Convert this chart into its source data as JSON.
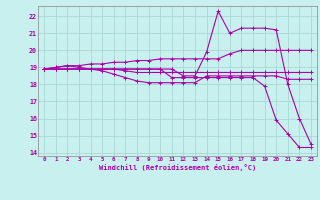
{
  "xlabel": "Windchill (Refroidissement éolien,°C)",
  "ylabel": "",
  "background_color": "#c8f0ee",
  "grid_color": "#a8d8d4",
  "line_color": "#aa00aa",
  "tick_color": "#aa00aa",
  "xlim": [
    -0.5,
    23.5
  ],
  "ylim": [
    13.8,
    22.6
  ],
  "yticks": [
    14,
    15,
    16,
    17,
    18,
    19,
    20,
    21,
    22
  ],
  "xticks": [
    0,
    1,
    2,
    3,
    4,
    5,
    6,
    7,
    8,
    9,
    10,
    11,
    12,
    13,
    14,
    15,
    16,
    17,
    18,
    19,
    20,
    21,
    22,
    23
  ],
  "series": [
    [
      18.9,
      18.9,
      18.9,
      18.9,
      18.9,
      18.9,
      18.9,
      18.9,
      18.9,
      18.9,
      18.9,
      18.4,
      18.4,
      18.4,
      18.4,
      18.4,
      18.4,
      18.4,
      18.4,
      17.9,
      15.9,
      15.1,
      14.3,
      14.3
    ],
    [
      18.9,
      19.0,
      19.1,
      19.0,
      18.9,
      18.8,
      18.6,
      18.4,
      18.2,
      18.1,
      18.1,
      18.1,
      18.1,
      18.1,
      18.5,
      18.5,
      18.5,
      18.5,
      18.5,
      18.5,
      18.5,
      18.3,
      18.3,
      18.3
    ],
    [
      18.9,
      18.9,
      18.9,
      18.9,
      18.9,
      18.9,
      18.9,
      18.8,
      18.7,
      18.7,
      18.7,
      18.7,
      18.7,
      18.7,
      18.7,
      18.7,
      18.7,
      18.7,
      18.7,
      18.7,
      18.7,
      18.7,
      18.7,
      18.7
    ],
    [
      18.9,
      19.0,
      19.1,
      19.1,
      19.2,
      19.2,
      19.3,
      19.3,
      19.4,
      19.4,
      19.5,
      19.5,
      19.5,
      19.5,
      19.5,
      19.5,
      19.8,
      20.0,
      20.0,
      20.0,
      20.0,
      20.0,
      20.0,
      20.0
    ],
    [
      18.9,
      18.9,
      18.9,
      18.9,
      18.9,
      18.9,
      18.9,
      18.9,
      18.9,
      18.9,
      18.9,
      18.9,
      18.5,
      18.5,
      19.9,
      22.3,
      21.0,
      21.3,
      21.3,
      21.3,
      21.2,
      18.0,
      16.0,
      14.5
    ]
  ]
}
